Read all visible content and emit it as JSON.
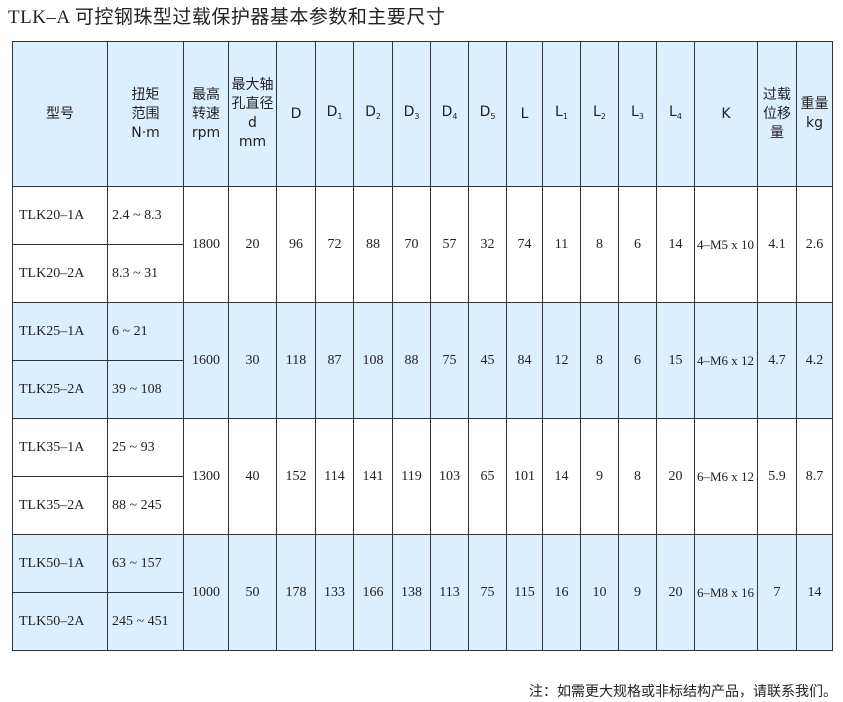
{
  "title": "TLK–A 可控钢珠型过载保护器基本参数和主要尺寸",
  "headers": {
    "model": "型号",
    "torque": [
      "扭矩",
      "范围",
      "N·m"
    ],
    "speed": [
      "最高",
      "转速",
      "rpm"
    ],
    "bore": [
      "最大轴",
      "孔直径",
      "d",
      "mm"
    ],
    "D": "D",
    "D1": "D",
    "D2": "D",
    "D3": "D",
    "D4": "D",
    "D5": "D",
    "L": "L",
    "L1": "L",
    "L2": "L",
    "L3": "L",
    "L4": "L",
    "sub1": "1",
    "sub2": "2",
    "sub3": "3",
    "sub4": "4",
    "sub5": "5",
    "K": "K",
    "disp": [
      "过载",
      "位移",
      "量"
    ],
    "weight": [
      "重量",
      "kg"
    ]
  },
  "groups": [
    {
      "rows": [
        {
          "model": "TLK20–1A",
          "range": "2.4 ~ 8.3"
        },
        {
          "model": "TLK20–2A",
          "range": "8.3 ~ 31"
        }
      ],
      "vals": [
        "1800",
        "20",
        "96",
        "72",
        "88",
        "70",
        "57",
        "32",
        "74",
        "11",
        "8",
        "6",
        "14",
        "4–M5 x 10",
        "4.1",
        "2.6"
      ]
    },
    {
      "rows": [
        {
          "model": "TLK25–1A",
          "range": "6 ~ 21"
        },
        {
          "model": "TLK25–2A",
          "range": "39 ~ 108"
        }
      ],
      "vals": [
        "1600",
        "30",
        "118",
        "87",
        "108",
        "88",
        "75",
        "45",
        "84",
        "12",
        "8",
        "6",
        "15",
        "4–M6 x 12",
        "4.7",
        "4.2"
      ]
    },
    {
      "rows": [
        {
          "model": "TLK35–1A",
          "range": "25 ~ 93"
        },
        {
          "model": "TLK35–2A",
          "range": "88 ~ 245"
        }
      ],
      "vals": [
        "1300",
        "40",
        "152",
        "114",
        "141",
        "119",
        "103",
        "65",
        "101",
        "14",
        "9",
        "8",
        "20",
        "6–M6 x 12",
        "5.9",
        "8.7"
      ]
    },
    {
      "rows": [
        {
          "model": "TLK50–1A",
          "range": "63 ~ 157"
        },
        {
          "model": "TLK50–2A",
          "range": "245 ~ 451"
        }
      ],
      "vals": [
        "1000",
        "50",
        "178",
        "133",
        "166",
        "138",
        "113",
        "75",
        "115",
        "16",
        "10",
        "9",
        "20",
        "6–M8 x 16",
        "7",
        "14"
      ]
    }
  ],
  "colors": {
    "header_bg": "#dcefff",
    "alt_row_bg": "#dcefff",
    "border": "#333333"
  },
  "note": "注：如需更大规格或非标结构产品，请联系我们。"
}
